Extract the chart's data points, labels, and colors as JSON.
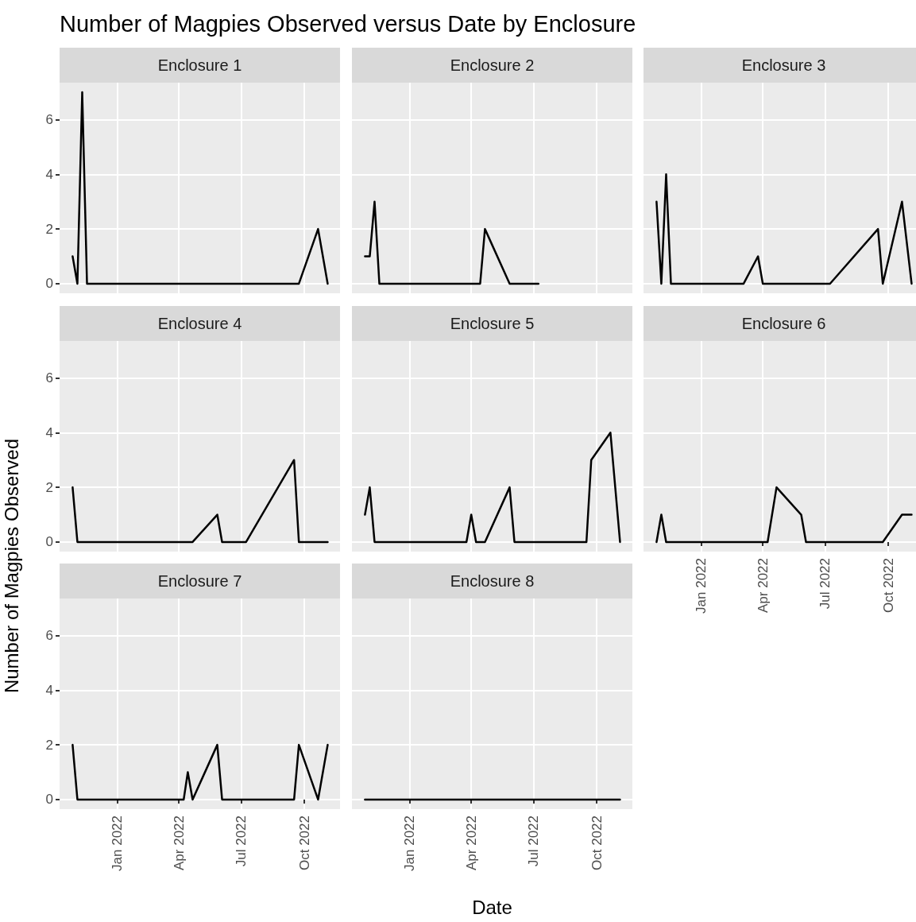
{
  "chart_data": [
    {
      "type": "line",
      "title": "Number of Magpies Observed versus Date by Enclosure",
      "subtitle": "Enclosure 1",
      "x": [
        "2021-10-28",
        "2021-11-04",
        "2021-11-11",
        "2021-11-18",
        "2022-09-23",
        "2022-10-21",
        "2022-11-04"
      ],
      "values": [
        1,
        0,
        7,
        0,
        0,
        2,
        0
      ],
      "color": "#000000",
      "xlim": [
        "2021-10-09",
        "2022-11-22"
      ],
      "xticks": [
        {
          "value": "2022-01-01",
          "label": null
        },
        {
          "value": "2022-04-01",
          "label": null
        },
        {
          "value": "2022-07-01",
          "label": null
        },
        {
          "value": "2022-10-01",
          "label": null
        }
      ],
      "ylim": [
        -0.35,
        7.35
      ],
      "yticks": [
        0,
        2,
        4,
        6
      ],
      "grid": true,
      "tick_labels": "y"
    },
    {
      "type": "line",
      "subtitle": "Enclosure 2",
      "x": [
        "2021-10-28",
        "2021-11-04",
        "2021-11-11",
        "2021-11-18",
        "2022-04-14",
        "2022-04-21",
        "2022-05-27",
        "2022-07-08"
      ],
      "values": [
        1,
        1,
        3,
        0,
        0,
        2,
        0,
        0
      ],
      "color": "#000000",
      "xlim": [
        "2021-10-09",
        "2022-11-22"
      ],
      "xticks": [
        {
          "value": "2022-01-01",
          "label": null
        },
        {
          "value": "2022-04-01",
          "label": null
        },
        {
          "value": "2022-07-01",
          "label": null
        },
        {
          "value": "2022-10-01",
          "label": null
        }
      ],
      "ylim": [
        -0.35,
        7.35
      ],
      "yticks": [
        0,
        2,
        4,
        6
      ],
      "grid": true,
      "tick_labels": false
    },
    {
      "type": "line",
      "subtitle": "Enclosure 3",
      "x": [
        "2021-10-28",
        "2021-11-04",
        "2021-11-11",
        "2021-11-18",
        "2022-03-04",
        "2022-03-25",
        "2022-04-01",
        "2022-07-08",
        "2022-09-16",
        "2022-09-23",
        "2022-10-21",
        "2022-11-04"
      ],
      "values": [
        3,
        0,
        4,
        0,
        0,
        1,
        0,
        0,
        2,
        0,
        3,
        0
      ],
      "color": "#000000",
      "xlim": [
        "2021-10-09",
        "2022-11-22"
      ],
      "xticks": [
        {
          "value": "2022-01-01",
          "label": null
        },
        {
          "value": "2022-04-01",
          "label": null
        },
        {
          "value": "2022-07-01",
          "label": null
        },
        {
          "value": "2022-10-01",
          "label": null
        }
      ],
      "ylim": [
        -0.35,
        7.35
      ],
      "yticks": [
        0,
        2,
        4,
        6
      ],
      "grid": true,
      "tick_labels": false
    },
    {
      "type": "line",
      "subtitle": "Enclosure 4",
      "ylabel": "Number of Magpies Observed",
      "x": [
        "2021-10-28",
        "2021-11-04",
        "2022-04-21",
        "2022-05-27",
        "2022-06-03",
        "2022-07-08",
        "2022-09-16",
        "2022-09-23",
        "2022-11-04"
      ],
      "values": [
        2,
        0,
        0,
        1,
        0,
        0,
        3,
        0,
        0
      ],
      "color": "#000000",
      "xlim": [
        "2021-10-09",
        "2022-11-22"
      ],
      "xticks": [
        {
          "value": "2022-01-01",
          "label": null
        },
        {
          "value": "2022-04-01",
          "label": null
        },
        {
          "value": "2022-07-01",
          "label": null
        },
        {
          "value": "2022-10-01",
          "label": null
        }
      ],
      "ylim": [
        -0.35,
        7.35
      ],
      "yticks": [
        0,
        2,
        4,
        6
      ],
      "grid": true,
      "tick_labels": "y"
    },
    {
      "type": "line",
      "subtitle": "Enclosure 5",
      "x": [
        "2021-10-28",
        "2021-11-04",
        "2021-11-11",
        "2022-03-25",
        "2022-04-01",
        "2022-04-08",
        "2022-04-21",
        "2022-05-27",
        "2022-06-03",
        "2022-09-16",
        "2022-09-23",
        "2022-10-21",
        "2022-11-04"
      ],
      "values": [
        1,
        2,
        0,
        0,
        1,
        0,
        0,
        2,
        0,
        0,
        3,
        4,
        0
      ],
      "color": "#000000",
      "xlim": [
        "2021-10-09",
        "2022-11-22"
      ],
      "xticks": [
        {
          "value": "2022-01-01",
          "label": null
        },
        {
          "value": "2022-04-01",
          "label": null
        },
        {
          "value": "2022-07-01",
          "label": null
        },
        {
          "value": "2022-10-01",
          "label": null
        }
      ],
      "ylim": [
        -0.35,
        7.35
      ],
      "yticks": [
        0,
        2,
        4,
        6
      ],
      "grid": true,
      "tick_labels": false
    },
    {
      "type": "line",
      "subtitle": "Enclosure 6",
      "x": [
        "2021-10-28",
        "2021-11-04",
        "2021-11-11",
        "2022-04-08",
        "2022-04-21",
        "2022-05-27",
        "2022-06-03",
        "2022-09-23",
        "2022-10-21",
        "2022-11-04"
      ],
      "values": [
        0,
        1,
        0,
        0,
        2,
        1,
        0,
        0,
        1,
        1
      ],
      "color": "#000000",
      "xlim": [
        "2021-10-09",
        "2022-11-22"
      ],
      "xticks": [
        {
          "value": "2022-01-01",
          "label": "Jan 2022"
        },
        {
          "value": "2022-04-01",
          "label": "Apr 2022"
        },
        {
          "value": "2022-07-01",
          "label": "Jul 2022"
        },
        {
          "value": "2022-10-01",
          "label": "Oct 2022"
        }
      ],
      "ylim": [
        -0.35,
        7.35
      ],
      "yticks": [
        0,
        2,
        4,
        6
      ],
      "grid": true,
      "tick_labels": "x"
    },
    {
      "type": "line",
      "subtitle": "Enclosure 7",
      "x": [
        "2021-10-28",
        "2021-11-04",
        "2022-04-08",
        "2022-04-14",
        "2022-04-21",
        "2022-05-27",
        "2022-06-03",
        "2022-09-16",
        "2022-09-23",
        "2022-10-21",
        "2022-11-04"
      ],
      "values": [
        2,
        0,
        0,
        1,
        0,
        2,
        0,
        0,
        2,
        0,
        2
      ],
      "color": "#000000",
      "xlim": [
        "2021-10-09",
        "2022-11-22"
      ],
      "xticks": [
        {
          "value": "2022-01-01",
          "label": "Jan 2022"
        },
        {
          "value": "2022-04-01",
          "label": "Apr 2022"
        },
        {
          "value": "2022-07-01",
          "label": "Jul 2022"
        },
        {
          "value": "2022-10-01",
          "label": "Oct 2022"
        }
      ],
      "ylim": [
        -0.35,
        7.35
      ],
      "yticks": [
        0,
        2,
        4,
        6
      ],
      "grid": true
    },
    {
      "type": "line",
      "subtitle": "Enclosure 8",
      "xlabel": "Date",
      "x": [
        "2021-10-28",
        "2022-11-04"
      ],
      "values": [
        0,
        0
      ],
      "color": "#000000",
      "xlim": [
        "2021-10-09",
        "2022-11-22"
      ],
      "xticks": [
        {
          "value": "2022-01-01",
          "label": "Jan 2022"
        },
        {
          "value": "2022-04-01",
          "label": "Apr 2022"
        },
        {
          "value": "2022-07-01",
          "label": "Jul 2022"
        },
        {
          "value": "2022-10-01",
          "label": "Oct 2022"
        }
      ],
      "ylim": [
        -0.35,
        7.35
      ],
      "yticks": [
        0,
        2,
        4,
        6
      ],
      "grid": true,
      "tick_labels": "x"
    }
  ]
}
